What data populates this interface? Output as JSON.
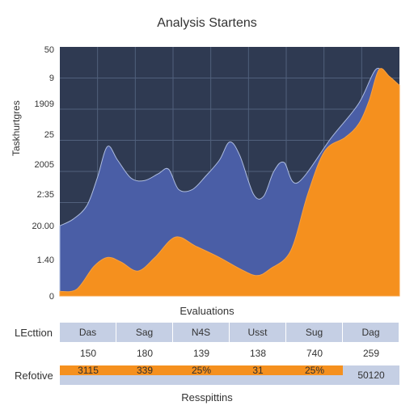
{
  "chart_data": {
    "type": "area",
    "title": "Analysis Startens",
    "ylabel": "Taskhurtgres",
    "xlabel": "Evaluations",
    "y_tick_labels": [
      "50",
      "9",
      "1909",
      "25",
      "2005",
      "2:35",
      "20.00",
      "1.40",
      "0"
    ],
    "grid": true,
    "series": [
      {
        "color": "#4a5ea6",
        "values": [
          [
            0,
            0.31
          ],
          [
            0.04,
            0.34
          ],
          [
            0.08,
            0.4
          ],
          [
            0.11,
            0.52
          ],
          [
            0.14,
            0.66
          ],
          [
            0.17,
            0.6
          ],
          [
            0.21,
            0.52
          ],
          [
            0.25,
            0.51
          ],
          [
            0.29,
            0.54
          ],
          [
            0.32,
            0.56
          ],
          [
            0.35,
            0.47
          ],
          [
            0.39,
            0.47
          ],
          [
            0.43,
            0.53
          ],
          [
            0.47,
            0.6
          ],
          [
            0.5,
            0.68
          ],
          [
            0.53,
            0.62
          ],
          [
            0.57,
            0.45
          ],
          [
            0.6,
            0.44
          ],
          [
            0.63,
            0.55
          ],
          [
            0.66,
            0.59
          ],
          [
            0.7,
            0.5
          ],
          [
            0.8,
            0.7
          ],
          [
            0.88,
            0.85
          ],
          [
            0.93,
            1.0
          ],
          [
            0.96,
            0.97
          ],
          [
            1.0,
            0.93
          ]
        ]
      },
      {
        "color": "#f5901e",
        "values": [
          [
            0,
            0.02
          ],
          [
            0.05,
            0.03
          ],
          [
            0.1,
            0.13
          ],
          [
            0.14,
            0.17
          ],
          [
            0.18,
            0.15
          ],
          [
            0.23,
            0.11
          ],
          [
            0.28,
            0.17
          ],
          [
            0.34,
            0.26
          ],
          [
            0.4,
            0.22
          ],
          [
            0.47,
            0.17
          ],
          [
            0.53,
            0.12
          ],
          [
            0.58,
            0.09
          ],
          [
            0.62,
            0.12
          ],
          [
            0.68,
            0.2
          ],
          [
            0.73,
            0.45
          ],
          [
            0.78,
            0.64
          ],
          [
            0.84,
            0.7
          ],
          [
            0.88,
            0.76
          ],
          [
            0.91,
            0.86
          ],
          [
            0.94,
            1.0
          ],
          [
            0.97,
            0.97
          ],
          [
            1.0,
            0.93
          ]
        ]
      }
    ],
    "table": {
      "header_row": {
        "label": "",
        "cells": [
          "Das",
          "Sag",
          "N4S",
          "Usst",
          "Sug",
          "Dag"
        ]
      },
      "values_row": {
        "label": "LEcttion",
        "cells": [
          "150",
          "180",
          "139",
          "138",
          "740",
          "259"
        ]
      },
      "footer_row": {
        "label": "Refotive",
        "cells": [
          "3115",
          "339",
          "25%",
          "31",
          "25%",
          "50120"
        ]
      }
    },
    "bottom_caption": "Resspittins"
  }
}
